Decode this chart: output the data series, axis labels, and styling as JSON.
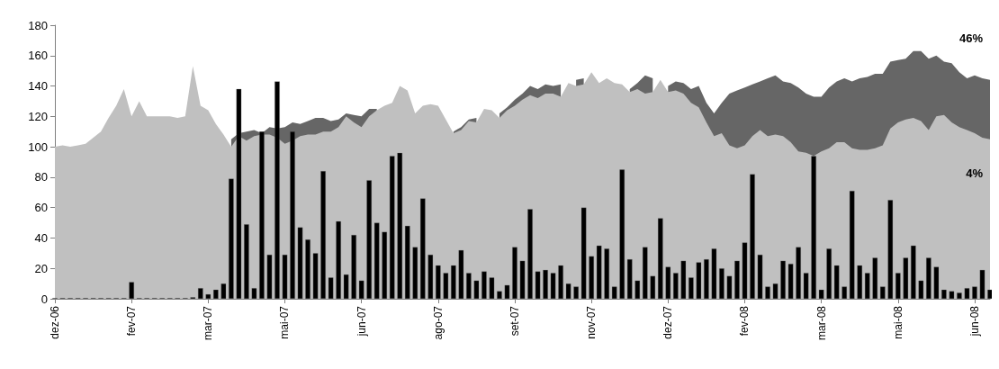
{
  "chart_data": {
    "type": "area",
    "categories": [
      "dez-06",
      null,
      null,
      null,
      null,
      null,
      null,
      null,
      null,
      null,
      "fev-07",
      null,
      null,
      null,
      null,
      null,
      null,
      null,
      null,
      null,
      "mar-07",
      null,
      null,
      null,
      null,
      null,
      null,
      null,
      null,
      null,
      "mai-07",
      null,
      null,
      null,
      null,
      null,
      null,
      null,
      null,
      null,
      "jun-07",
      null,
      null,
      null,
      null,
      null,
      null,
      null,
      null,
      null,
      "ago-07",
      null,
      null,
      null,
      null,
      null,
      null,
      null,
      null,
      null,
      "set-07",
      null,
      null,
      null,
      null,
      null,
      null,
      null,
      null,
      null,
      "nov-07",
      null,
      null,
      null,
      null,
      null,
      null,
      null,
      null,
      null,
      "dez-07",
      null,
      null,
      null,
      null,
      null,
      null,
      null,
      null,
      null,
      "fev-08",
      null,
      null,
      null,
      null,
      null,
      null,
      null,
      null,
      null,
      "mar-08",
      null,
      null,
      null,
      null,
      null,
      null,
      null,
      null,
      null,
      "mai-08",
      null,
      null,
      null,
      null,
      null,
      null,
      null,
      null,
      null,
      "jun-08",
      null,
      null
    ],
    "series": [
      {
        "color": "#666666",
        "values": [
          null,
          null,
          null,
          null,
          null,
          null,
          null,
          null,
          null,
          null,
          null,
          null,
          null,
          null,
          null,
          null,
          null,
          null,
          null,
          null,
          null,
          null,
          null,
          105,
          109,
          110,
          111,
          109,
          113,
          112,
          113,
          116,
          115,
          117,
          119,
          119,
          117,
          118,
          122,
          121,
          120,
          125,
          125,
          null,
          null,
          null,
          null,
          null,
          null,
          null,
          null,
          null,
          110,
          113,
          118,
          119,
          null,
          null,
          122,
          126,
          131,
          135,
          140,
          138,
          141,
          140,
          141,
          null,
          144,
          145,
          null,
          null,
          null,
          null,
          null,
          138,
          142,
          147,
          145,
          null,
          140,
          143,
          142,
          138,
          140,
          129,
          122,
          129,
          135,
          137,
          139,
          141,
          143,
          145,
          147,
          143,
          142,
          139,
          135,
          133,
          133,
          139,
          143,
          145,
          143,
          145,
          146,
          148,
          148,
          156,
          157,
          158,
          163,
          163,
          158,
          160,
          156,
          155,
          149,
          145,
          147,
          145,
          144
        ]
      },
      {
        "color": "#c0c0c0",
        "values": [
          100,
          101,
          100,
          101,
          102,
          106,
          110,
          119,
          127,
          138,
          120,
          130,
          120,
          120,
          120,
          120,
          119,
          120,
          153,
          127,
          124,
          115,
          108,
          100,
          107,
          104,
          107,
          108,
          108,
          106,
          102,
          104,
          107,
          108,
          108,
          110,
          110,
          113,
          120,
          116,
          113,
          120,
          124,
          127,
          129,
          140,
          137,
          122,
          127,
          128,
          127,
          118,
          109,
          111,
          117,
          116,
          125,
          124,
          119,
          124,
          127,
          131,
          134,
          132,
          135,
          135,
          133,
          142,
          140,
          141,
          149,
          142,
          145,
          142,
          141,
          136,
          138,
          135,
          136,
          144,
          136,
          137,
          135,
          129,
          126,
          116,
          107,
          109,
          101,
          99,
          101,
          107,
          111,
          107,
          108,
          107,
          103,
          97,
          96,
          94,
          97,
          99,
          103,
          103,
          99,
          98,
          98,
          99,
          101,
          112,
          116,
          118,
          119,
          117,
          111,
          120,
          121,
          116,
          113,
          111,
          109,
          106,
          105
        ]
      },
      {
        "type": "bar",
        "color": "#000000",
        "values": [
          0.5,
          0.5,
          0.5,
          0.5,
          0.5,
          0.5,
          0.5,
          0.5,
          0.5,
          0.5,
          11,
          0.5,
          0.5,
          0.5,
          0.5,
          0.5,
          0.5,
          0.5,
          1,
          7,
          3,
          6,
          10,
          79,
          138,
          49,
          7,
          110,
          29,
          143,
          29,
          110,
          47,
          39,
          30,
          84,
          14,
          51,
          16,
          42,
          12,
          78,
          50,
          44,
          94,
          96,
          48,
          34,
          66,
          29,
          22,
          17,
          22,
          32,
          17,
          12,
          18,
          14,
          5,
          9,
          34,
          25,
          59,
          18,
          19,
          17,
          22,
          10,
          8,
          60,
          28,
          35,
          33,
          8,
          85,
          26,
          12,
          34,
          15,
          53,
          21,
          17,
          25,
          14,
          24,
          26,
          33,
          20,
          15,
          25,
          37,
          82,
          29,
          8,
          10,
          25,
          23,
          34,
          17,
          94,
          6,
          33,
          22,
          8,
          71,
          22,
          17,
          27,
          8,
          65,
          17,
          27,
          35,
          12,
          27,
          21,
          6,
          5,
          4,
          7,
          8,
          19,
          6
        ]
      }
    ],
    "ylim": [
      0,
      180
    ],
    "yticks": [
      0,
      20,
      40,
      60,
      80,
      100,
      120,
      140,
      160,
      180
    ],
    "annotations": [
      "46%",
      "4%"
    ],
    "grid": false
  }
}
